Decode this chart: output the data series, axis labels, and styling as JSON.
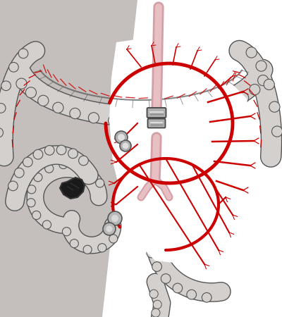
{
  "bg_color": "#ffffff",
  "gray_bg_color": "#c4bfbc",
  "colon_fill": "#d4d0cd",
  "colon_stroke": "#555555",
  "colon_inner": "#b8b4b0",
  "artery_red": "#cc0000",
  "artery_pink_outer": "#d4a0a8",
  "artery_pink_inner": "#e8c0c4",
  "tumor_color": "#1a1a1a",
  "ligation_gray": "#999999",
  "white": "#ffffff",
  "figsize": [
    4.0,
    4.5
  ],
  "dpi": 100
}
